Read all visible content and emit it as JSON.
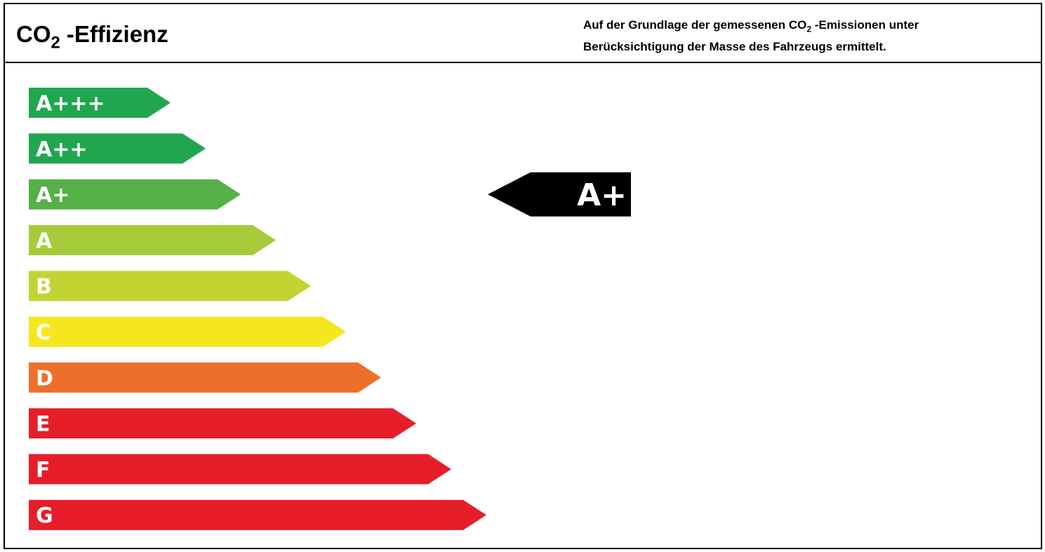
{
  "header": {
    "title_main": "CO",
    "title_sub": "2",
    "title_rest": " -Effizienz",
    "desc_line1_pre": "Auf der Grundlage der gemessenen CO",
    "desc_line1_sub": "2",
    "desc_line1_post": " -Emissionen unter",
    "desc_line2": "Berücksichtigung der Masse des Fahrzeugs ermittelt."
  },
  "chart_data": {
    "type": "bar",
    "categories": [
      "A+++",
      "A++",
      "A+",
      "A",
      "B",
      "C",
      "D",
      "E",
      "F",
      "G"
    ],
    "values": [
      1,
      2,
      3,
      4,
      5,
      6,
      7,
      8,
      9,
      10
    ],
    "colors": [
      "#21a650",
      "#21a650",
      "#55b048",
      "#a6cb3a",
      "#c3d432",
      "#f5e71e",
      "#ec6f2a",
      "#e61e2a",
      "#e61e2a",
      "#e61e2a"
    ],
    "selected": "A+",
    "indicator_color": "#000000"
  }
}
